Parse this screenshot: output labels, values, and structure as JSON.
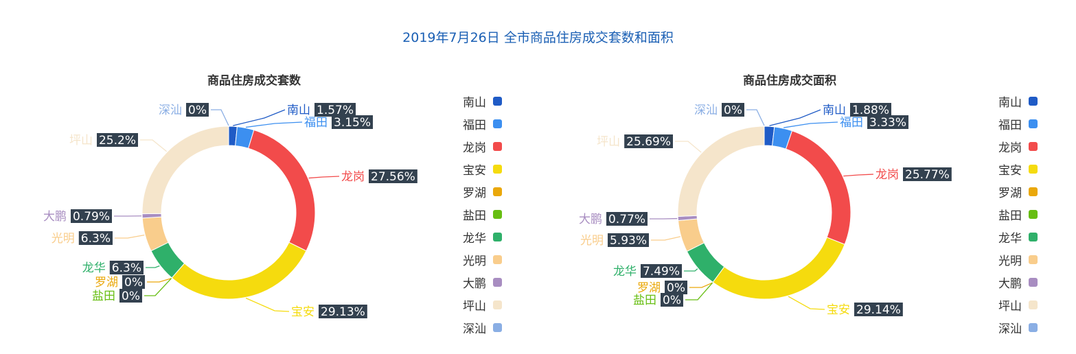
{
  "main_title": "2019年7月26日 全市商品住房成交套数和面积",
  "colors": {
    "南山": "#1f5bc6",
    "福田": "#3c8ff0",
    "龙岗": "#f24b4b",
    "宝安": "#f5db0e",
    "罗湖": "#eaa80b",
    "盐田": "#67be12",
    "龙华": "#2fb06a",
    "光明": "#f9cd8c",
    "大鹏": "#a88dc1",
    "坪山": "#f5e5cb",
    "深汕": "#8aaee4"
  },
  "chart_data": [
    {
      "type": "pie",
      "title": "商品住房成交套数",
      "categories": [
        "南山",
        "福田",
        "龙岗",
        "宝安",
        "罗湖",
        "盐田",
        "龙华",
        "光明",
        "大鹏",
        "坪山",
        "深汕"
      ],
      "values": [
        1.57,
        3.15,
        27.56,
        29.13,
        0,
        0,
        6.3,
        6.3,
        0.79,
        25.2,
        0
      ],
      "labels": [
        "1.57%",
        "3.15%",
        "27.56%",
        "29.13%",
        "0%",
        "0%",
        "6.3%",
        "6.3%",
        "0.79%",
        "25.2%",
        "0%"
      ],
      "legend": [
        "南山",
        "福田",
        "龙岗",
        "宝安",
        "罗湖",
        "盐田",
        "龙华",
        "光明",
        "大鹏",
        "坪山",
        "深汕"
      ]
    },
    {
      "type": "pie",
      "title": "商品住房成交面积",
      "categories": [
        "南山",
        "福田",
        "龙岗",
        "宝安",
        "罗湖",
        "盐田",
        "龙华",
        "光明",
        "大鹏",
        "坪山",
        "深汕"
      ],
      "values": [
        1.88,
        3.33,
        25.77,
        29.14,
        0,
        0,
        7.49,
        5.93,
        0.77,
        25.69,
        0
      ],
      "labels": [
        "1.88%",
        "3.33%",
        "25.77%",
        "29.14%",
        "0%",
        "0%",
        "7.49%",
        "5.93%",
        "0.77%",
        "25.69%",
        "0%"
      ],
      "legend": [
        "南山",
        "福田",
        "龙岗",
        "宝安",
        "罗湖",
        "盐田",
        "龙华",
        "光明",
        "大鹏",
        "坪山",
        "深汕"
      ]
    }
  ]
}
